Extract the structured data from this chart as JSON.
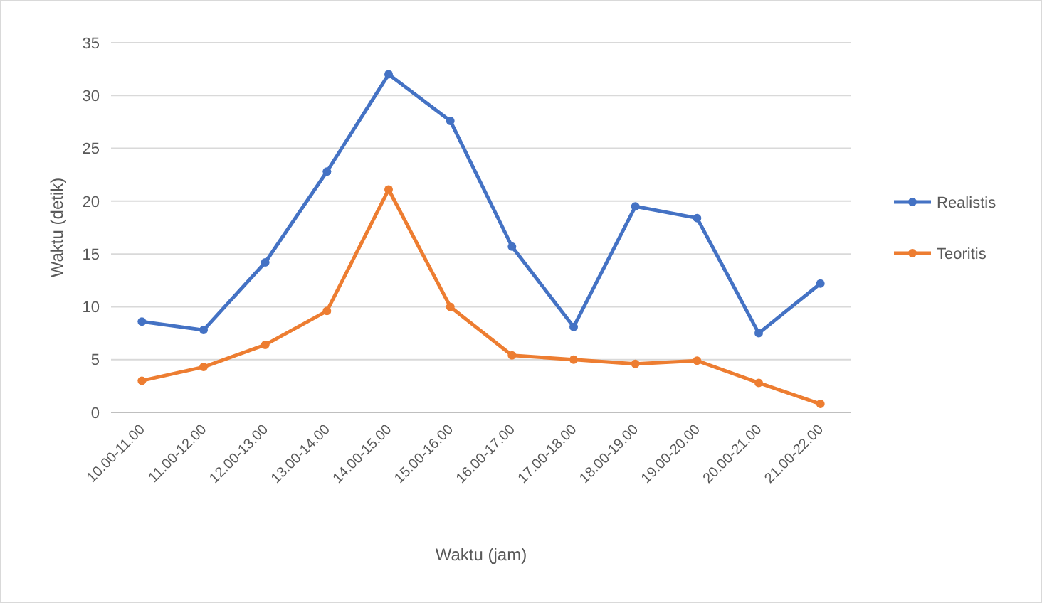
{
  "chart_data": {
    "type": "line",
    "xlabel": "Waktu (jam)",
    "ylabel": "Waktu (detik)",
    "categories": [
      "10.00-11.00",
      "11.00-12.00",
      "12.00-13.00",
      "13.00-14.00",
      "14.00-15.00",
      "15.00-16.00",
      "16.00-17.00",
      "17.00-18.00",
      "18.00-19.00",
      "19.00-20.00",
      "20.00-21.00",
      "21.00-22.00"
    ],
    "series": [
      {
        "name": "Realistis",
        "color": "#4472c4",
        "values": [
          8.6,
          7.8,
          14.2,
          22.8,
          32.0,
          27.6,
          15.7,
          8.1,
          19.5,
          18.4,
          7.5,
          12.2
        ]
      },
      {
        "name": "Teoritis",
        "color": "#ed7d31",
        "values": [
          3.0,
          4.3,
          6.4,
          9.6,
          21.1,
          10.0,
          5.4,
          5.0,
          4.6,
          4.9,
          2.8,
          0.8
        ]
      }
    ],
    "ylim": [
      0,
      35
    ],
    "yticks": [
      0,
      5,
      10,
      15,
      20,
      25,
      30,
      35
    ],
    "grid": "y",
    "legend": "right",
    "marker": "circle",
    "line_style": "solid"
  }
}
